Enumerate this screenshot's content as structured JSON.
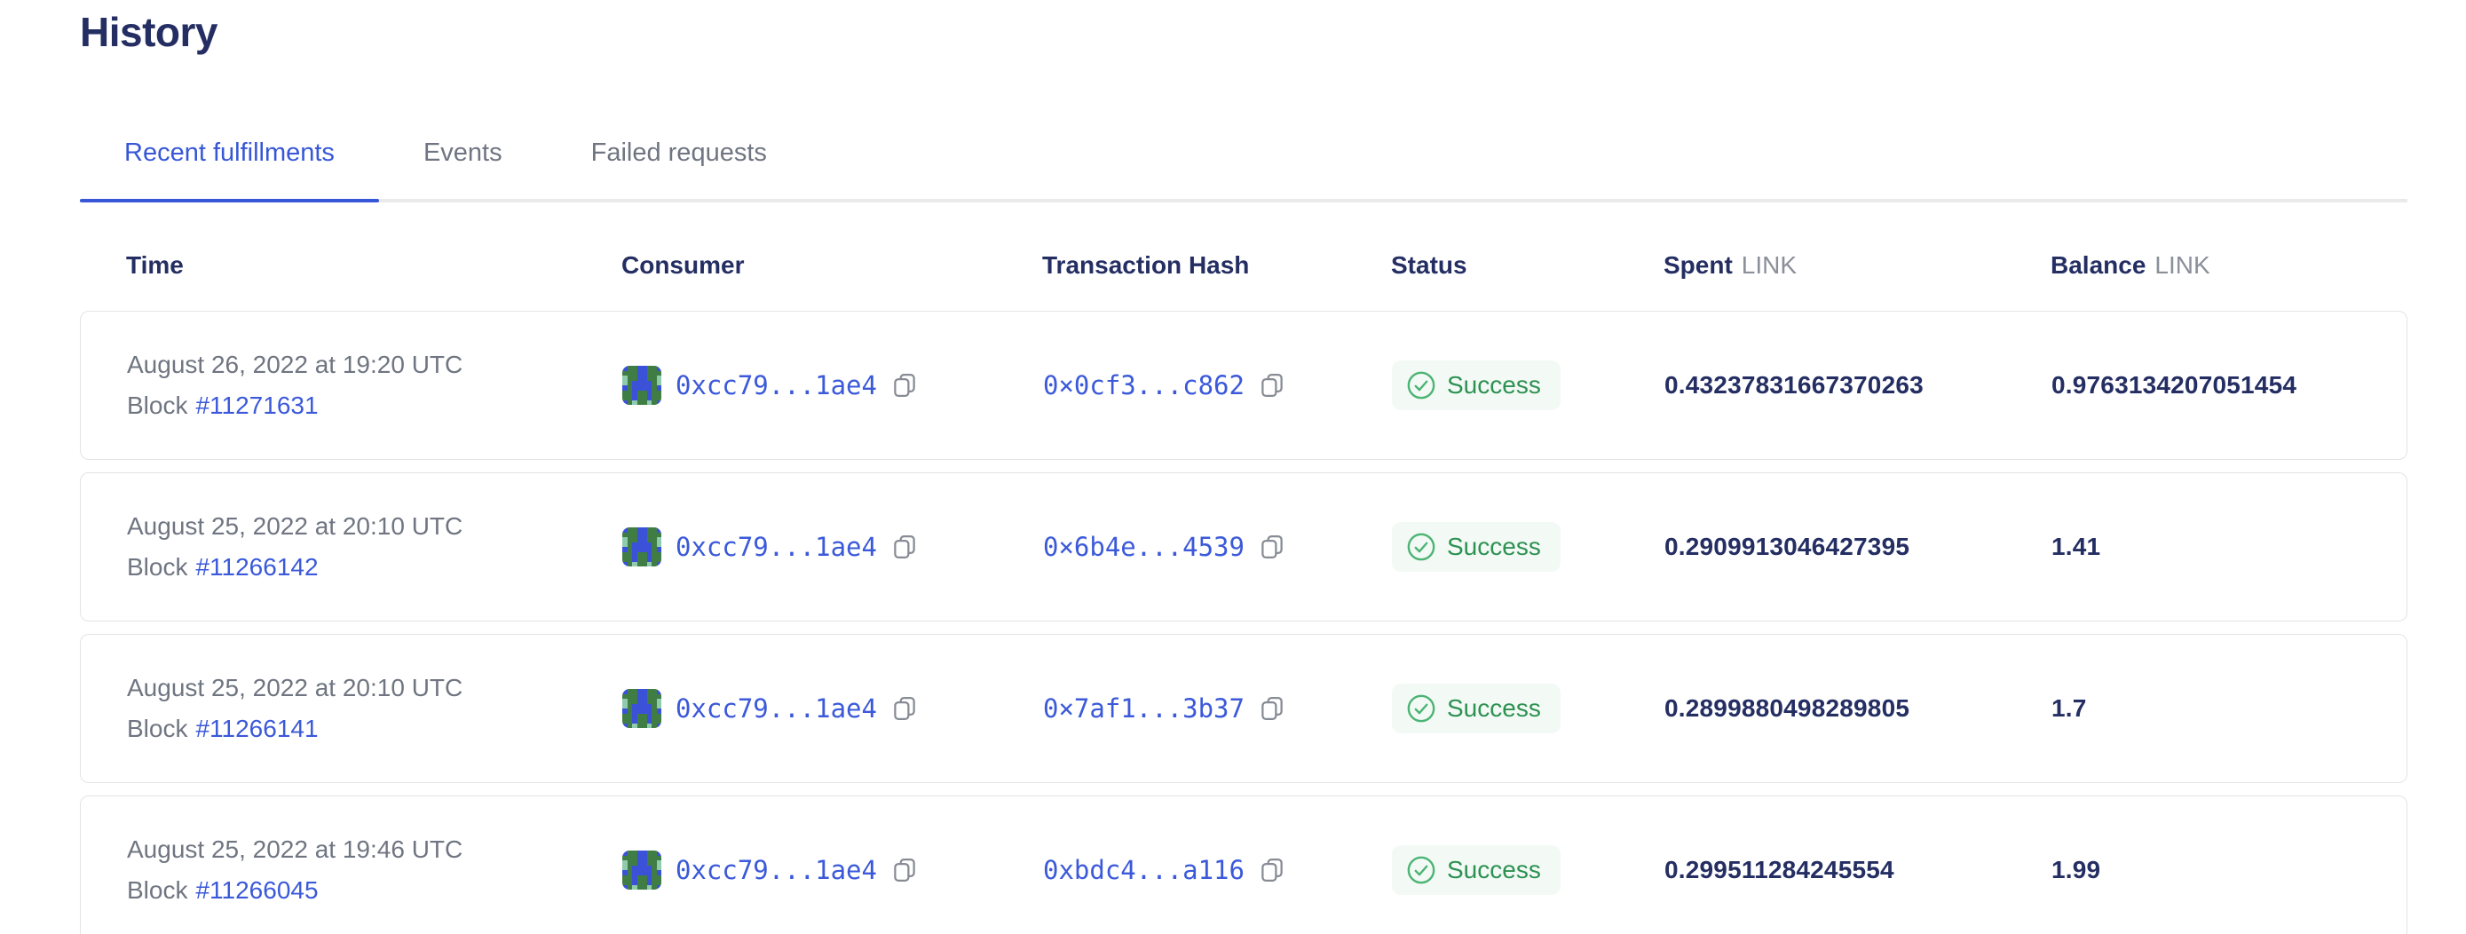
{
  "page": {
    "title": "History"
  },
  "tabs": [
    {
      "label": "Recent fulfillments",
      "active": true
    },
    {
      "label": "Events",
      "active": false
    },
    {
      "label": "Failed requests",
      "active": false
    }
  ],
  "table": {
    "headers": {
      "time": "Time",
      "consumer": "Consumer",
      "transaction_hash": "Transaction Hash",
      "status": "Status",
      "spent": "Spent",
      "spent_unit": "LINK",
      "balance": "Balance",
      "balance_unit": "LINK"
    },
    "rows": [
      {
        "time": "August 26, 2022 at 19:20 UTC",
        "block_label": "Block",
        "block": "#11271631",
        "consumer": "0xcc79...1ae4",
        "tx": "0×0cf3...c862",
        "status": "Success",
        "spent": "0.43237831667370263",
        "balance": "0.9763134207051454"
      },
      {
        "time": "August 25, 2022 at 20:10 UTC",
        "block_label": "Block",
        "block": "#11266142",
        "consumer": "0xcc79...1ae4",
        "tx": "0×6b4e...4539",
        "status": "Success",
        "spent": "0.2909913046427395",
        "balance": "1.41"
      },
      {
        "time": "August 25, 2022 at 20:10 UTC",
        "block_label": "Block",
        "block": "#11266141",
        "consumer": "0xcc79...1ae4",
        "tx": "0×7af1...3b37",
        "status": "Success",
        "spent": "0.2899880498289805",
        "balance": "1.7"
      },
      {
        "time": "August 25, 2022 at 19:46 UTC",
        "block_label": "Block",
        "block": "#11266045",
        "consumer": "0xcc79...1ae4",
        "tx": "0xbdc4...a116",
        "status": "Success",
        "spent": "0.299511284245554",
        "balance": "1.99"
      }
    ]
  },
  "icons": {
    "copy": "copy-icon",
    "check": "check-circle-icon",
    "avatar": "consumer-avatar-blockie"
  },
  "colors": {
    "heading_navy": "#242e62",
    "brand_blue": "#3757d8",
    "link_blue": "#3b59d9",
    "body_gray": "#6f7581",
    "success_green": "#2d9152",
    "success_icon_green": "#4cb474",
    "success_badge_bg": "#f3faf5"
  },
  "avatar": {
    "cell_colors": {
      "G": "#3f7d44",
      "B": "#3b52d8",
      "T": "#8fcbac"
    },
    "pattern": [
      "BGGBBGGB",
      "GGGBBGGG",
      "TGGBBGGT",
      "TGBBBBGT",
      "BGBBBBGB",
      "GGBGGBGG",
      "GGBGGBGG",
      "BGTGGTGB"
    ]
  }
}
